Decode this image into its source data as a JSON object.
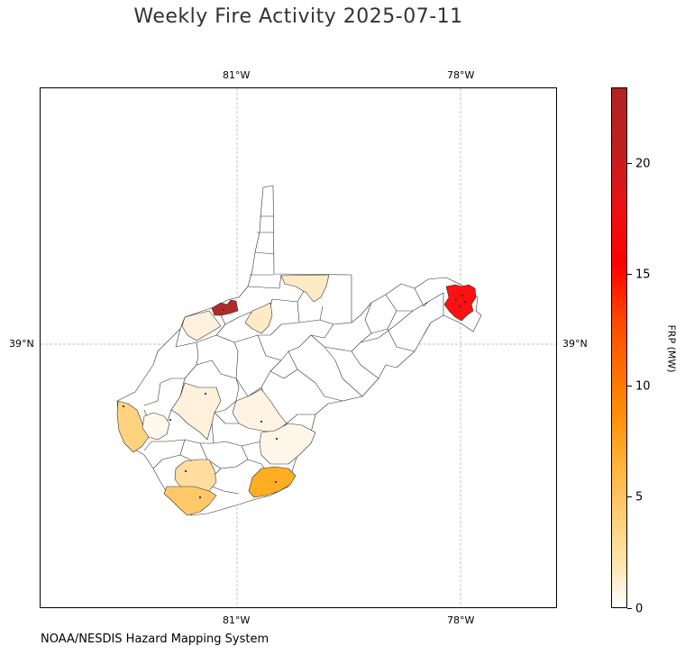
{
  "map": {
    "title": "Weekly Fire Activity 2025-07-11",
    "credit": "NOAA/NESDIS Hazard Mapping System",
    "region": "West Virginia",
    "gridlines": {
      "longitudes": [
        "81°W",
        "78°W"
      ],
      "latitudes": [
        "39°N"
      ]
    }
  },
  "colorbar": {
    "label": "FRP (MW)",
    "ticks": [
      "0",
      "5",
      "10",
      "15",
      "20"
    ],
    "range": [
      0,
      23.3
    ],
    "colors": [
      "#ffffff",
      "#ffe6b3",
      "#ffb43c",
      "#ff8c00",
      "#ff0000",
      "#b22222"
    ]
  },
  "fire_counties": [
    {
      "area": "eastern panhandle",
      "frp_mw": 15.5,
      "color": "#ff1010"
    },
    {
      "area": "northwest river county",
      "frp_mw": 23.0,
      "color": "#b02a2a"
    },
    {
      "area": "southern county",
      "frp_mw": 7.5,
      "color": "#ffad22"
    },
    {
      "area": "far southern county",
      "frp_mw": 4.5,
      "color": "#ffc96a"
    },
    {
      "area": "western border county",
      "frp_mw": 4.0,
      "color": "#ffd280"
    },
    {
      "area": "southwest county",
      "frp_mw": 3.0,
      "color": "#ffdca0"
    },
    {
      "area": "northern panhandle base",
      "frp_mw": 2.0,
      "color": "#ffeac6"
    },
    {
      "area": "north-central county",
      "frp_mw": 2.0,
      "color": "#ffeac6"
    },
    {
      "area": "northwest county",
      "frp_mw": 1.5,
      "color": "#fff1dc"
    },
    {
      "area": "central county",
      "frp_mw": 1.2,
      "color": "#fff1dc"
    },
    {
      "area": "central-south county",
      "frp_mw": 1.0,
      "color": "#fff4e4"
    },
    {
      "area": "southeast county",
      "frp_mw": 0.8,
      "color": "#fff6ea"
    },
    {
      "area": "western county",
      "frp_mw": 0.6,
      "color": "#fff8ee"
    }
  ]
}
